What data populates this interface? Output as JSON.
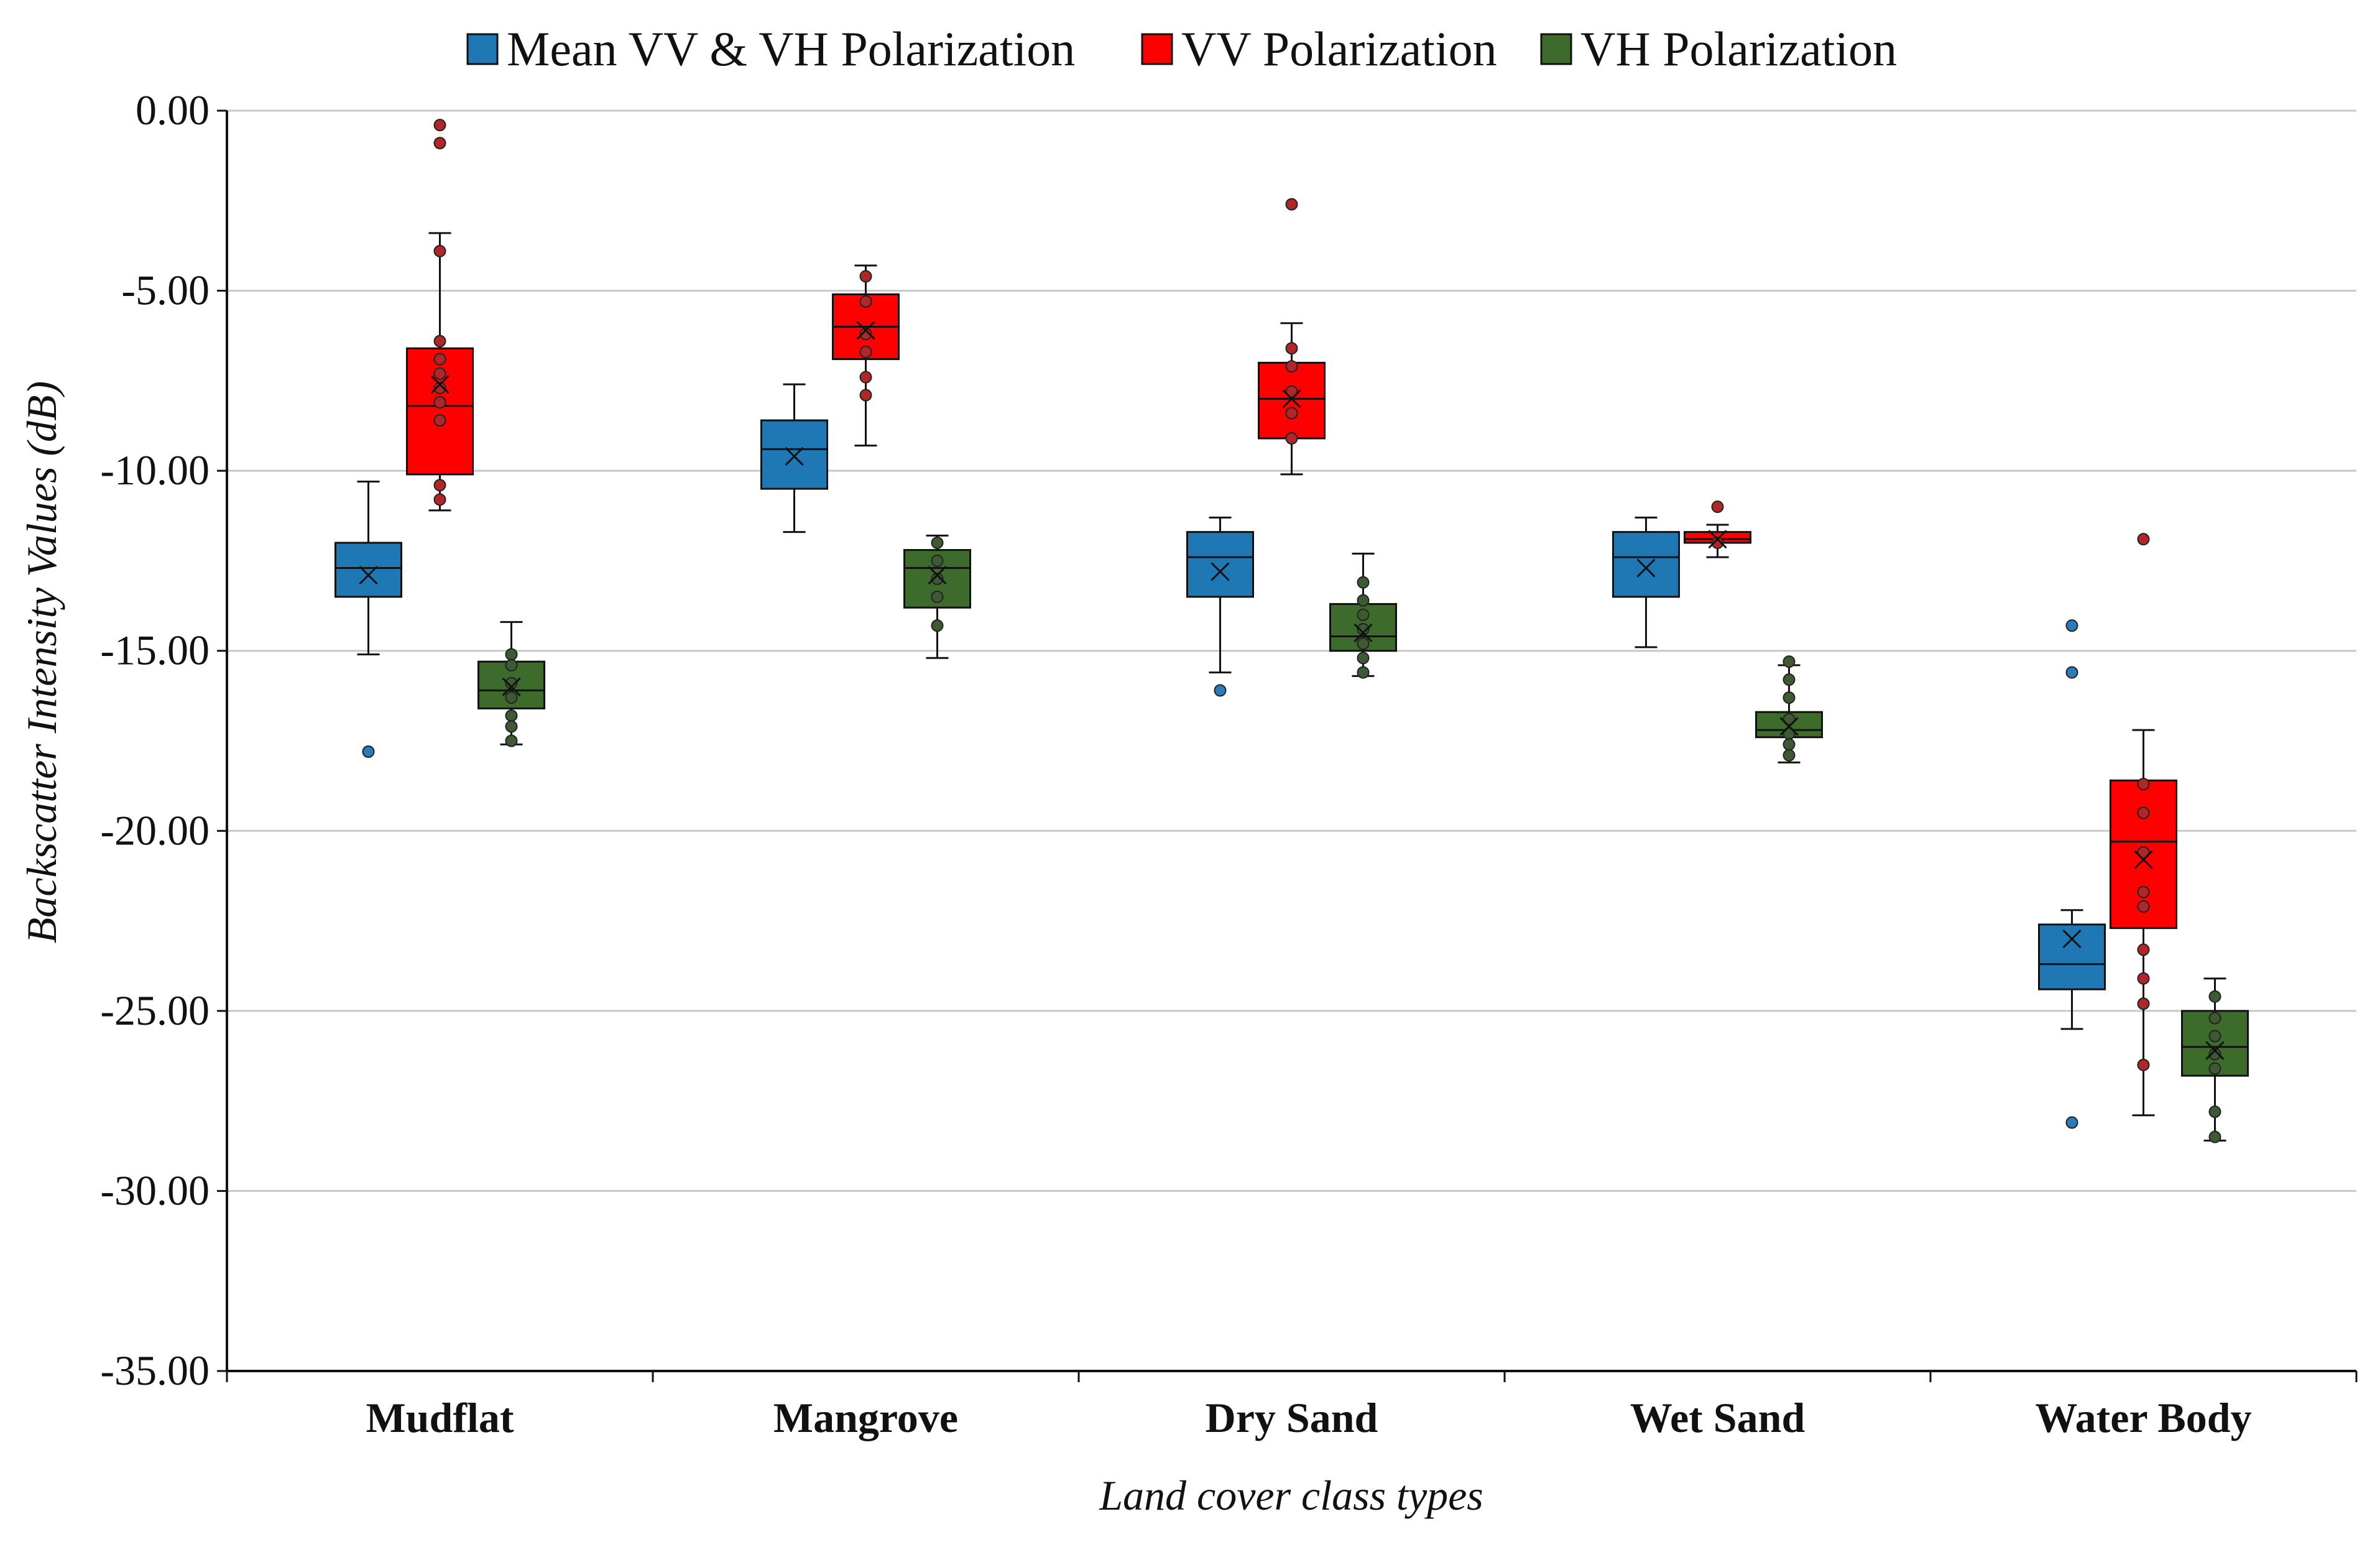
{
  "chart_data": {
    "type": "box",
    "title": "",
    "xlabel": "Land cover class types",
    "ylabel": "Backscatter Intensity Values (dB)",
    "ylim": [
      -35,
      0
    ],
    "yticks": [
      0,
      -5,
      -10,
      -15,
      -20,
      -25,
      -30,
      -35
    ],
    "ytick_labels": [
      "0.00",
      "-5.00",
      "-10.00",
      "-15.00",
      "-20.00",
      "-25.00",
      "-30.00",
      "-35.00"
    ],
    "grid": true,
    "legend_position": "top-center",
    "categories": [
      "Mudflat",
      "Mangrove",
      "Dry Sand",
      "Wet Sand",
      "Water Body"
    ],
    "series": [
      {
        "name": "Mean VV & VH Polarization",
        "color": "#1F77B4",
        "boxes": [
          {
            "whisker_low": -15.1,
            "q1": -13.5,
            "median": -12.7,
            "q3": -12.0,
            "whisker_high": -10.3,
            "mean": -12.9,
            "points": [
              -17.8
            ]
          },
          {
            "whisker_low": -11.7,
            "q1": -10.5,
            "median": -9.4,
            "q3": -8.6,
            "whisker_high": -7.6,
            "mean": -9.6,
            "points": []
          },
          {
            "whisker_low": -15.6,
            "q1": -13.5,
            "median": -12.4,
            "q3": -11.7,
            "whisker_high": -11.3,
            "mean": -12.8,
            "points": [
              -16.1
            ]
          },
          {
            "whisker_low": -14.9,
            "q1": -13.5,
            "median": -12.4,
            "q3": -11.7,
            "whisker_high": -11.3,
            "mean": -12.7,
            "points": []
          },
          {
            "whisker_low": -25.5,
            "q1": -24.4,
            "median": -23.7,
            "q3": -22.6,
            "whisker_high": -22.2,
            "mean": -23.0,
            "points": [
              -14.3,
              -15.6,
              -28.1
            ]
          }
        ]
      },
      {
        "name": "VV Polarization",
        "color": "#FF0000",
        "boxes": [
          {
            "whisker_low": -11.1,
            "q1": -10.1,
            "median": -8.2,
            "q3": -6.6,
            "whisker_high": -3.4,
            "mean": -7.6,
            "points": [
              -0.4,
              -0.9,
              -3.9,
              -6.4,
              -6.9,
              -7.3,
              -7.7,
              -8.1,
              -8.6,
              -10.4,
              -10.8
            ]
          },
          {
            "whisker_low": -9.3,
            "q1": -6.9,
            "median": -6.0,
            "q3": -5.1,
            "whisker_high": -4.3,
            "mean": -6.1,
            "points": [
              -4.6,
              -5.3,
              -6.2,
              -6.7,
              -7.4,
              -7.9
            ]
          },
          {
            "whisker_low": -10.1,
            "q1": -9.1,
            "median": -8.0,
            "q3": -7.0,
            "whisker_high": -5.9,
            "mean": -8.0,
            "points": [
              -2.6,
              -6.6,
              -7.1,
              -7.8,
              -8.4,
              -9.1
            ]
          },
          {
            "whisker_low": -12.4,
            "q1": -12.0,
            "median": -11.9,
            "q3": -11.7,
            "whisker_high": -11.5,
            "mean": -11.9,
            "points": [
              -11.0,
              -12.0
            ]
          },
          {
            "whisker_low": -27.9,
            "q1": -22.7,
            "median": -20.3,
            "q3": -18.6,
            "whisker_high": -17.2,
            "mean": -20.8,
            "points": [
              -11.9,
              -18.7,
              -19.5,
              -20.6,
              -21.7,
              -22.1,
              -23.3,
              -24.1,
              -24.8,
              -26.5
            ]
          }
        ]
      },
      {
        "name": "VH Polarization",
        "color": "#3D6B2B",
        "boxes": [
          {
            "whisker_low": -17.6,
            "q1": -16.6,
            "median": -16.1,
            "q3": -15.3,
            "whisker_high": -14.2,
            "mean": -16.0,
            "points": [
              -15.1,
              -15.4,
              -15.9,
              -16.3,
              -16.8,
              -17.1,
              -17.5
            ]
          },
          {
            "whisker_low": -15.2,
            "q1": -13.8,
            "median": -12.7,
            "q3": -12.2,
            "whisker_high": -11.8,
            "mean": -12.9,
            "points": [
              -12.0,
              -12.5,
              -13.0,
              -13.5,
              -14.3
            ]
          },
          {
            "whisker_low": -15.7,
            "q1": -15.0,
            "median": -14.6,
            "q3": -13.7,
            "whisker_high": -12.3,
            "mean": -14.5,
            "points": [
              -13.1,
              -13.6,
              -14.0,
              -14.4,
              -14.8,
              -15.2,
              -15.6
            ]
          },
          {
            "whisker_low": -18.1,
            "q1": -17.4,
            "median": -17.2,
            "q3": -16.7,
            "whisker_high": -15.4,
            "mean": -17.1,
            "points": [
              -15.3,
              -15.8,
              -16.3,
              -16.9,
              -17.3,
              -17.6,
              -17.9
            ]
          },
          {
            "whisker_low": -28.6,
            "q1": -26.8,
            "median": -26.0,
            "q3": -25.0,
            "whisker_high": -24.1,
            "mean": -26.1,
            "points": [
              -24.6,
              -25.2,
              -25.7,
              -26.2,
              -26.6,
              -27.8,
              -28.5
            ]
          }
        ]
      }
    ]
  }
}
